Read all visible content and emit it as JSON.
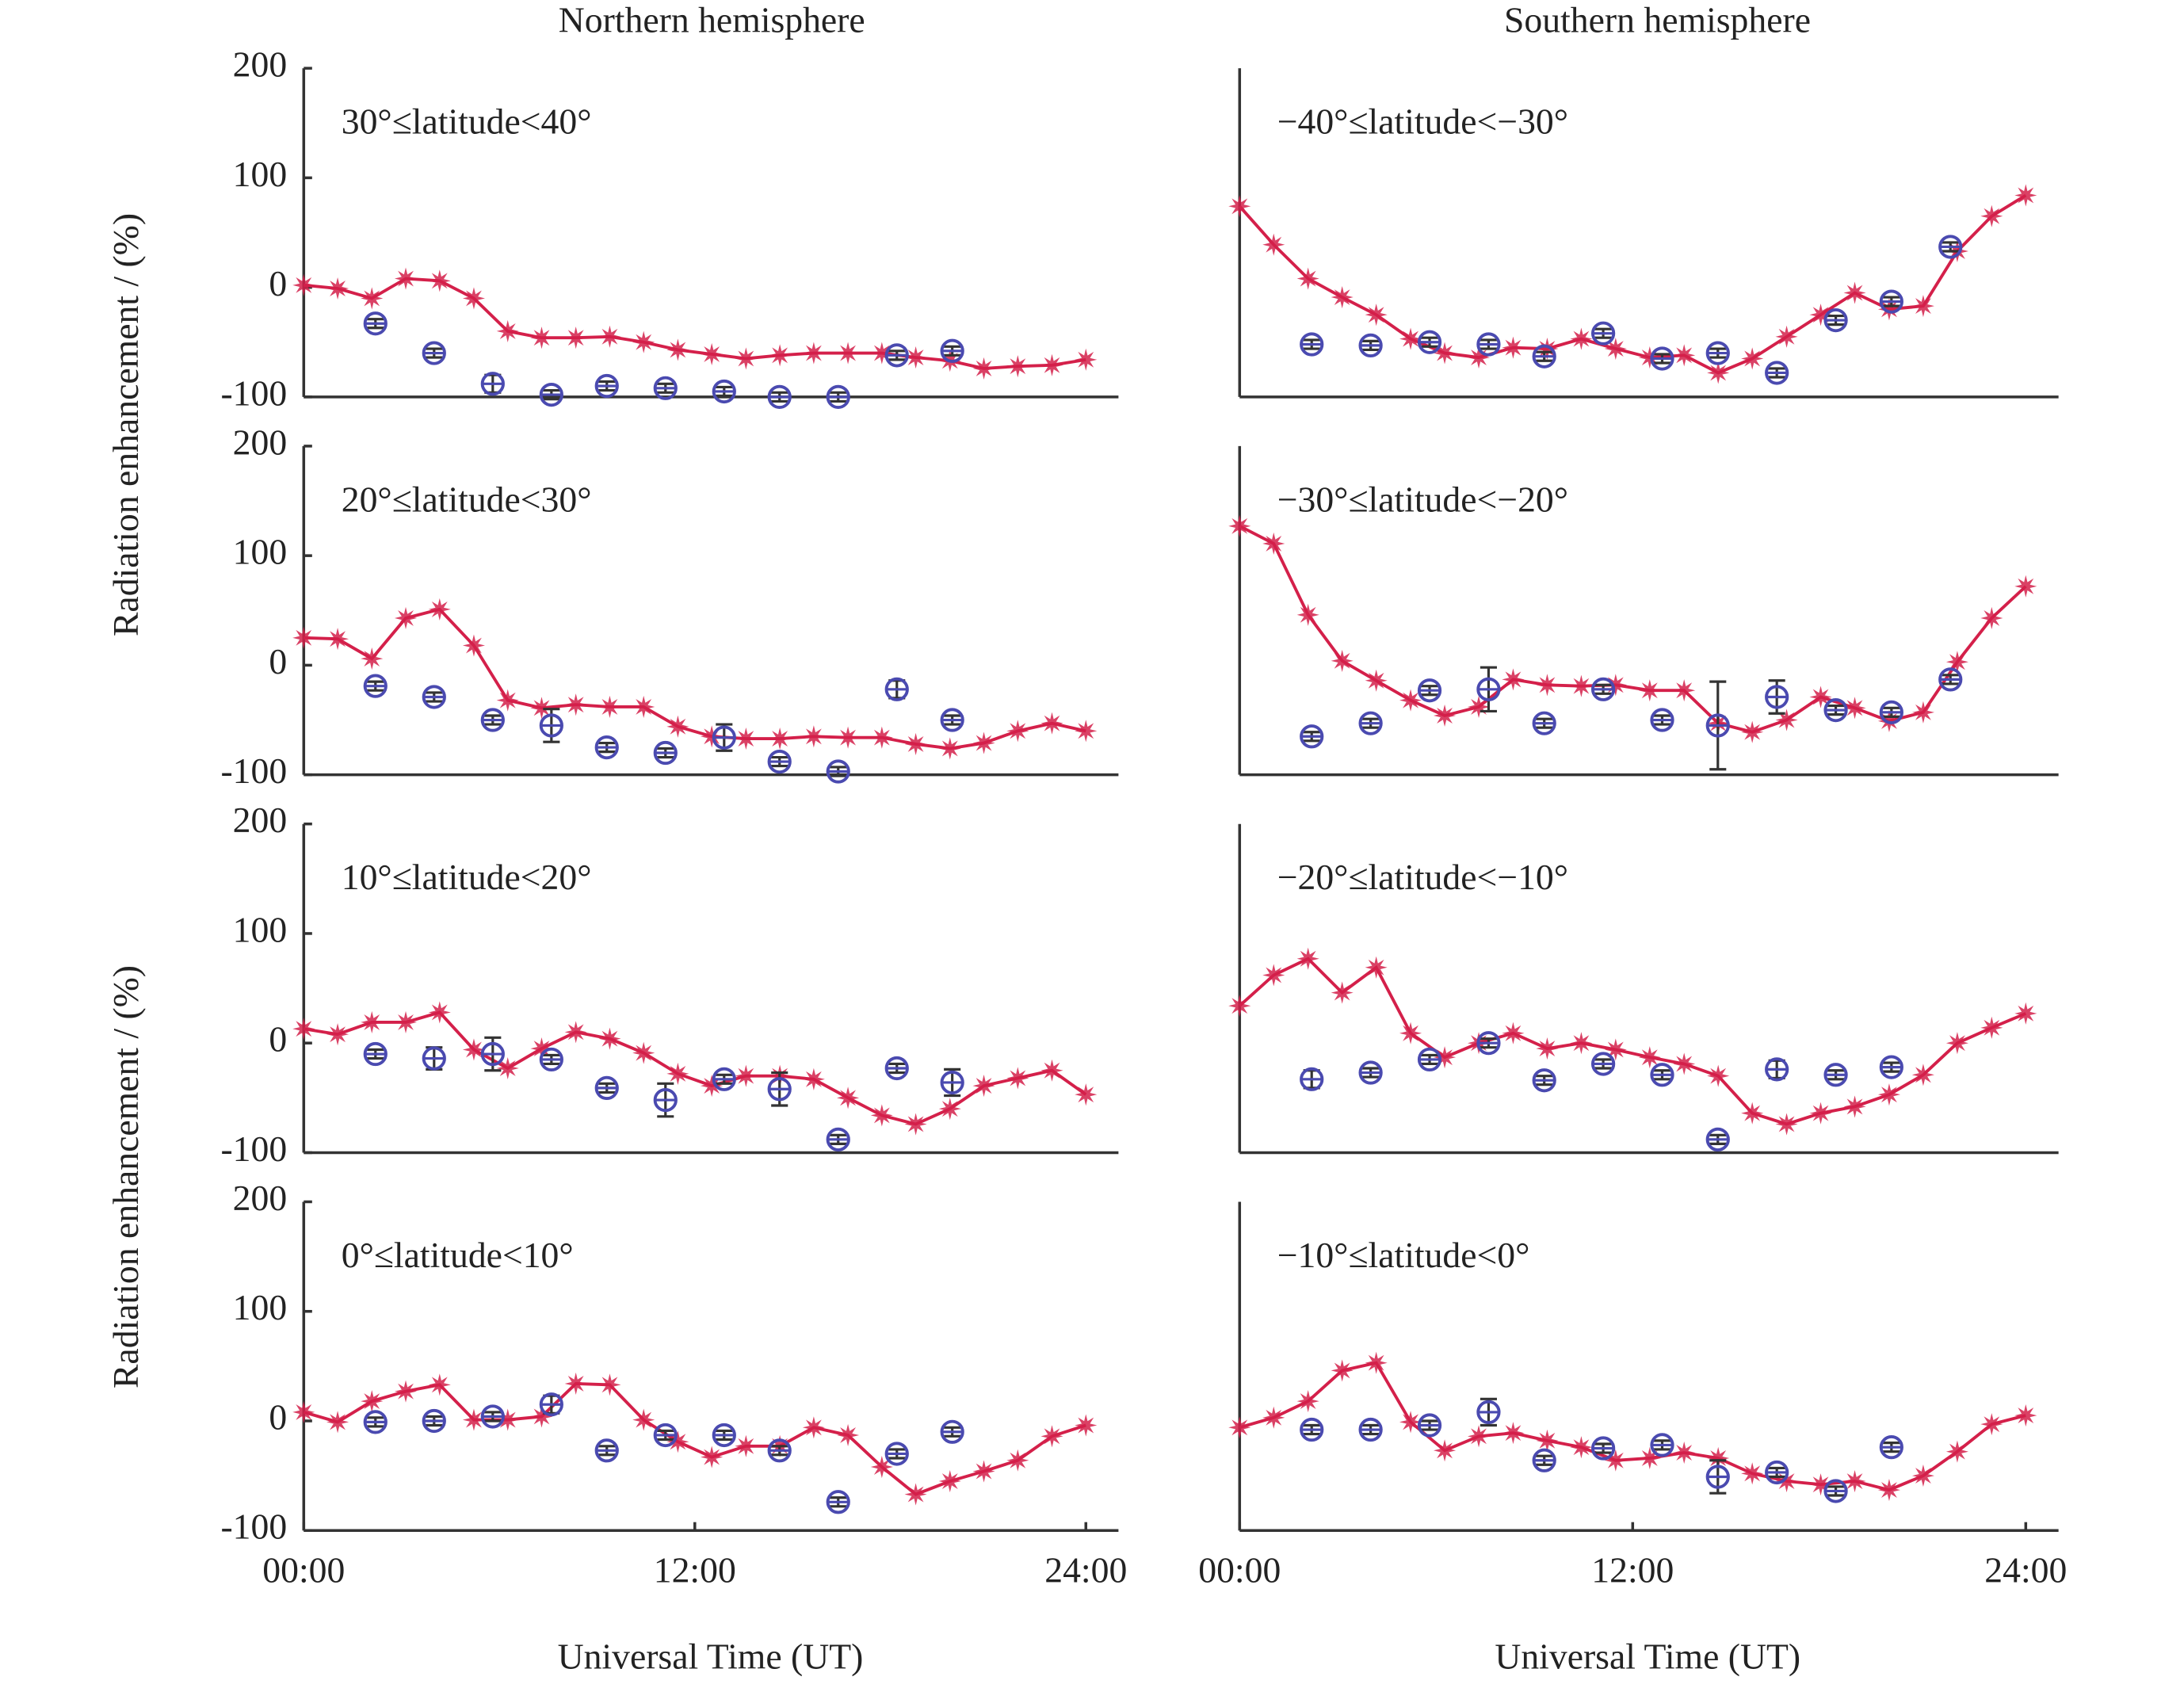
{
  "column_titles": [
    "Northern hemisphere",
    "Southern hemisphere"
  ],
  "ylabels": [
    "Radiation enhancement / (%)",
    "Radiation enhancement / (%)"
  ],
  "xlabels": [
    "Universal Time (UT)",
    "Universal Time (UT)"
  ],
  "chart_data": [
    {
      "type": "line",
      "title": "30°≤latitude<40°",
      "xlim": [
        0,
        25
      ],
      "ylim": [
        -100,
        200
      ],
      "yticks": [
        -100,
        0,
        100,
        200
      ],
      "series": [
        {
          "color": "#d4204a",
          "marker": "star",
          "line": true,
          "x": [
            0,
            1.04,
            2.09,
            3.13,
            4.17,
            5.22,
            6.26,
            7.3,
            8.35,
            9.39,
            10.43,
            11.48,
            12.52,
            13.57,
            14.61,
            15.65,
            16.7,
            17.74,
            18.78,
            19.83,
            20.87,
            21.91,
            22.96,
            24
          ],
          "values": [
            2,
            -1,
            -10,
            8,
            6,
            -10,
            -40,
            -46,
            -46,
            -45,
            -50,
            -57,
            -61,
            -65,
            -62,
            -60,
            -60,
            -60,
            -64,
            -67,
            -74,
            -72,
            -71,
            -66
          ]
        },
        {
          "color": "#4a4ab0",
          "marker": "circle",
          "line": false,
          "x": [
            2.2,
            4,
            5.8,
            7.6,
            9.3,
            11.1,
            12.9,
            14.6,
            16.4,
            18.2,
            19.9,
            21.7
          ],
          "values": [
            -33,
            -60,
            -88,
            -98,
            -90,
            -92,
            -95,
            -100,
            -100,
            -62,
            -58,
            null
          ],
          "errors": [
            4,
            4,
            8,
            4,
            4,
            4,
            4,
            4,
            4,
            4,
            4,
            null
          ]
        }
      ]
    },
    {
      "type": "line",
      "title": "20°≤latitude<30°",
      "xlim": [
        0,
        25
      ],
      "ylim": [
        -100,
        200
      ],
      "yticks": [
        -100,
        0,
        100,
        200
      ],
      "series": [
        {
          "color": "#d4204a",
          "marker": "star",
          "line": true,
          "x": [
            0,
            1.04,
            2.09,
            3.13,
            4.17,
            5.22,
            6.26,
            7.3,
            8.35,
            9.39,
            10.43,
            11.48,
            12.52,
            13.57,
            14.61,
            15.65,
            16.7,
            17.74,
            18.78,
            19.83,
            20.87,
            21.91,
            22.96,
            24
          ],
          "values": [
            25,
            24,
            6,
            43,
            51,
            18,
            -32,
            -39,
            -36,
            -38,
            -38,
            -56,
            -65,
            -67,
            -67,
            -65,
            -66,
            -66,
            -72,
            -76,
            -71,
            -60,
            -53,
            -60
          ]
        },
        {
          "color": "#4a4ab0",
          "marker": "circle",
          "line": false,
          "x": [
            2.2,
            4,
            5.8,
            7.6,
            9.3,
            11.1,
            12.9,
            14.6,
            16.4,
            18.2,
            19.9,
            21.7
          ],
          "values": [
            -19,
            -29,
            -50,
            -55,
            -75,
            -80,
            -66,
            -88,
            -97,
            -22,
            -50,
            null
          ],
          "errors": [
            4,
            4,
            4,
            15,
            4,
            4,
            12,
            4,
            4,
            8,
            4,
            null
          ]
        }
      ]
    },
    {
      "type": "line",
      "title": "10°≤latitude<20°",
      "xlim": [
        0,
        25
      ],
      "ylim": [
        -100,
        200
      ],
      "yticks": [
        -100,
        0,
        100,
        200
      ],
      "series": [
        {
          "color": "#d4204a",
          "marker": "star",
          "line": true,
          "x": [
            0,
            1.04,
            2.09,
            3.13,
            4.17,
            5.22,
            6.26,
            7.3,
            8.35,
            9.39,
            10.43,
            11.48,
            12.52,
            13.57,
            14.61,
            15.65,
            16.7,
            17.74,
            18.78,
            19.83,
            20.87,
            21.91,
            22.96,
            24
          ],
          "values": [
            13,
            8,
            19,
            19,
            28,
            -6,
            -23,
            -5,
            10,
            4,
            -9,
            -28,
            -39,
            -30,
            -30,
            -33,
            -50,
            -66,
            -74,
            -60,
            -39,
            -32,
            -25,
            -47
          ]
        },
        {
          "color": "#4a4ab0",
          "marker": "circle",
          "line": false,
          "x": [
            2.2,
            4,
            5.8,
            7.6,
            9.3,
            11.1,
            12.9,
            14.6,
            16.4,
            18.2,
            19.9,
            21.7
          ],
          "values": [
            -10,
            -14,
            -10,
            -15,
            -41,
            -52,
            -33,
            -42,
            -88,
            -23,
            -36,
            null
          ],
          "errors": [
            4,
            10,
            15,
            4,
            4,
            15,
            4,
            15,
            4,
            4,
            12,
            null
          ]
        }
      ]
    },
    {
      "type": "line",
      "title": "0°≤latitude<10°",
      "xlim": [
        0,
        25
      ],
      "ylim": [
        -100,
        200
      ],
      "yticks": [
        -100,
        0,
        100,
        200
      ],
      "xticks": [
        {
          "value": 0,
          "label": "00:00"
        },
        {
          "value": 12,
          "label": "12:00"
        },
        {
          "value": 24,
          "label": "24:00"
        }
      ],
      "series": [
        {
          "color": "#d4204a",
          "marker": "star",
          "line": true,
          "x": [
            0,
            1.04,
            2.09,
            3.13,
            4.17,
            5.22,
            6.26,
            7.3,
            8.35,
            9.39,
            10.43,
            11.48,
            12.52,
            13.57,
            14.61,
            15.65,
            16.7,
            17.74,
            18.78,
            19.83,
            20.87,
            21.91,
            22.96,
            24
          ],
          "values": [
            8,
            -1,
            18,
            27,
            33,
            1,
            1,
            4,
            34,
            33,
            1,
            -19,
            -33,
            -23,
            -23,
            -6,
            -13,
            -42,
            -67,
            -55,
            -46,
            -36,
            -14,
            -4
          ]
        },
        {
          "color": "#4a4ab0",
          "marker": "circle",
          "line": false,
          "x": [
            2.2,
            4,
            5.8,
            7.6,
            9.3,
            11.1,
            12.9,
            14.6,
            16.4,
            18.2,
            19.9,
            21.7
          ],
          "values": [
            -1,
            0,
            4,
            15,
            -27,
            -13,
            -13,
            -27,
            -74,
            -30,
            -10,
            null
          ],
          "errors": [
            4,
            4,
            4,
            8,
            4,
            4,
            4,
            4,
            4,
            4,
            4,
            null
          ]
        }
      ]
    },
    {
      "type": "line",
      "title": "−40°≤latitude<−30°",
      "xlim": [
        0,
        25
      ],
      "ylim": [
        -100,
        200
      ],
      "series": [
        {
          "color": "#d4204a",
          "marker": "star",
          "line": true,
          "x": [
            0,
            1.04,
            2.09,
            3.13,
            4.17,
            5.22,
            6.26,
            7.3,
            8.35,
            9.39,
            10.43,
            11.48,
            12.52,
            13.57,
            14.61,
            15.65,
            16.7,
            17.74,
            18.78,
            19.83,
            20.87,
            21.91,
            22.96,
            24
          ],
          "values": [
            74,
            39,
            8,
            -9,
            -25,
            -47,
            -60,
            -64,
            -55,
            -56,
            -47,
            -56,
            -64,
            -62,
            -78,
            -65,
            -45,
            -25,
            -5,
            -20,
            -17,
            33,
            65,
            84
          ]
        },
        {
          "color": "#4a4ab0",
          "marker": "circle",
          "line": false,
          "x": [
            2.2,
            4,
            5.8,
            7.6,
            9.3,
            11.1,
            12.9,
            14.6,
            16.4,
            18.2,
            19.9,
            21.7
          ],
          "values": [
            -52,
            -53,
            -50,
            -52,
            -63,
            -42,
            -65,
            -60,
            -78,
            -30,
            -13,
            37
          ],
          "errors": [
            4,
            4,
            4,
            4,
            4,
            4,
            4,
            4,
            4,
            4,
            4,
            4
          ]
        }
      ]
    },
    {
      "type": "line",
      "title": "−30°≤latitude<−20°",
      "xlim": [
        0,
        25
      ],
      "ylim": [
        -100,
        200
      ],
      "series": [
        {
          "color": "#d4204a",
          "marker": "star",
          "line": true,
          "x": [
            0,
            1.04,
            2.09,
            3.13,
            4.17,
            5.22,
            6.26,
            7.3,
            8.35,
            9.39,
            10.43,
            11.48,
            12.52,
            13.57,
            14.61,
            15.65,
            16.7,
            17.74,
            18.78,
            19.83,
            20.87,
            21.91,
            22.96,
            24
          ],
          "values": [
            127,
            111,
            46,
            4,
            -14,
            -32,
            -46,
            -38,
            -13,
            -18,
            -19,
            -18,
            -23,
            -23,
            -53,
            -61,
            -50,
            -29,
            -39,
            -51,
            -43,
            3,
            43,
            72
          ]
        },
        {
          "color": "#4a4ab0",
          "marker": "circle",
          "line": false,
          "x": [
            2.2,
            4,
            5.8,
            7.6,
            9.3,
            11.1,
            12.9,
            14.6,
            16.4,
            18.2,
            19.9,
            21.7
          ],
          "values": [
            -65,
            -53,
            -23,
            -22,
            -53,
            -22,
            -50,
            -55,
            -29,
            -41,
            -43,
            -13
          ],
          "errors": [
            4,
            4,
            4,
            20,
            4,
            4,
            4,
            40,
            15,
            4,
            4,
            4
          ]
        }
      ]
    },
    {
      "type": "line",
      "title": "−20°≤latitude<−10°",
      "xlim": [
        0,
        25
      ],
      "ylim": [
        -100,
        200
      ],
      "series": [
        {
          "color": "#d4204a",
          "marker": "star",
          "line": true,
          "x": [
            0,
            1.04,
            2.09,
            3.13,
            4.17,
            5.22,
            6.26,
            7.3,
            8.35,
            9.39,
            10.43,
            11.48,
            12.52,
            13.57,
            14.61,
            15.65,
            16.7,
            17.74,
            18.78,
            19.83,
            20.87,
            21.91,
            22.96,
            24
          ],
          "values": [
            34,
            62,
            77,
            46,
            69,
            9,
            -13,
            0,
            9,
            -5,
            0,
            -6,
            -13,
            -19,
            -30,
            -64,
            -74,
            -64,
            -58,
            -47,
            -29,
            0,
            14,
            27
          ]
        },
        {
          "color": "#4a4ab0",
          "marker": "circle",
          "line": false,
          "x": [
            2.2,
            4,
            5.8,
            7.6,
            9.3,
            11.1,
            12.9,
            14.6,
            16.4,
            18.2,
            19.9,
            21.7
          ],
          "values": [
            -33,
            -27,
            -15,
            0,
            -34,
            -19,
            -29,
            -88,
            -24,
            -29,
            -22,
            null
          ],
          "errors": [
            8,
            4,
            4,
            4,
            4,
            4,
            4,
            4,
            8,
            4,
            4,
            null
          ]
        }
      ]
    },
    {
      "type": "line",
      "title": "−10°≤latitude<0°",
      "xlim": [
        0,
        25
      ],
      "ylim": [
        -100,
        200
      ],
      "xticks": [
        {
          "value": 0,
          "label": "00:00"
        },
        {
          "value": 12,
          "label": "12:00"
        },
        {
          "value": 24,
          "label": "24:00"
        }
      ],
      "series": [
        {
          "color": "#d4204a",
          "marker": "star",
          "line": true,
          "x": [
            0,
            1.04,
            2.09,
            3.13,
            4.17,
            5.22,
            6.26,
            7.3,
            8.35,
            9.39,
            10.43,
            11.48,
            12.52,
            13.57,
            14.61,
            15.65,
            16.7,
            17.74,
            18.78,
            19.83,
            20.87,
            21.91,
            22.96,
            24
          ],
          "values": [
            -6,
            3,
            18,
            46,
            53,
            -1,
            -27,
            -14,
            -11,
            -18,
            -24,
            -36,
            -34,
            -29,
            -34,
            -48,
            -55,
            -58,
            -55,
            -63,
            -50,
            -28,
            -3,
            5
          ]
        },
        {
          "color": "#4a4ab0",
          "marker": "circle",
          "line": false,
          "x": [
            2.2,
            4,
            5.8,
            7.6,
            9.3,
            11.1,
            12.9,
            14.6,
            16.4,
            18.2,
            19.9,
            21.7
          ],
          "values": [
            -8,
            -8,
            -4,
            8,
            -36,
            -25,
            -22,
            -51,
            -47,
            -64,
            -24,
            null
          ],
          "errors": [
            4,
            4,
            4,
            12,
            4,
            4,
            4,
            15,
            4,
            4,
            4,
            null
          ]
        }
      ]
    }
  ]
}
